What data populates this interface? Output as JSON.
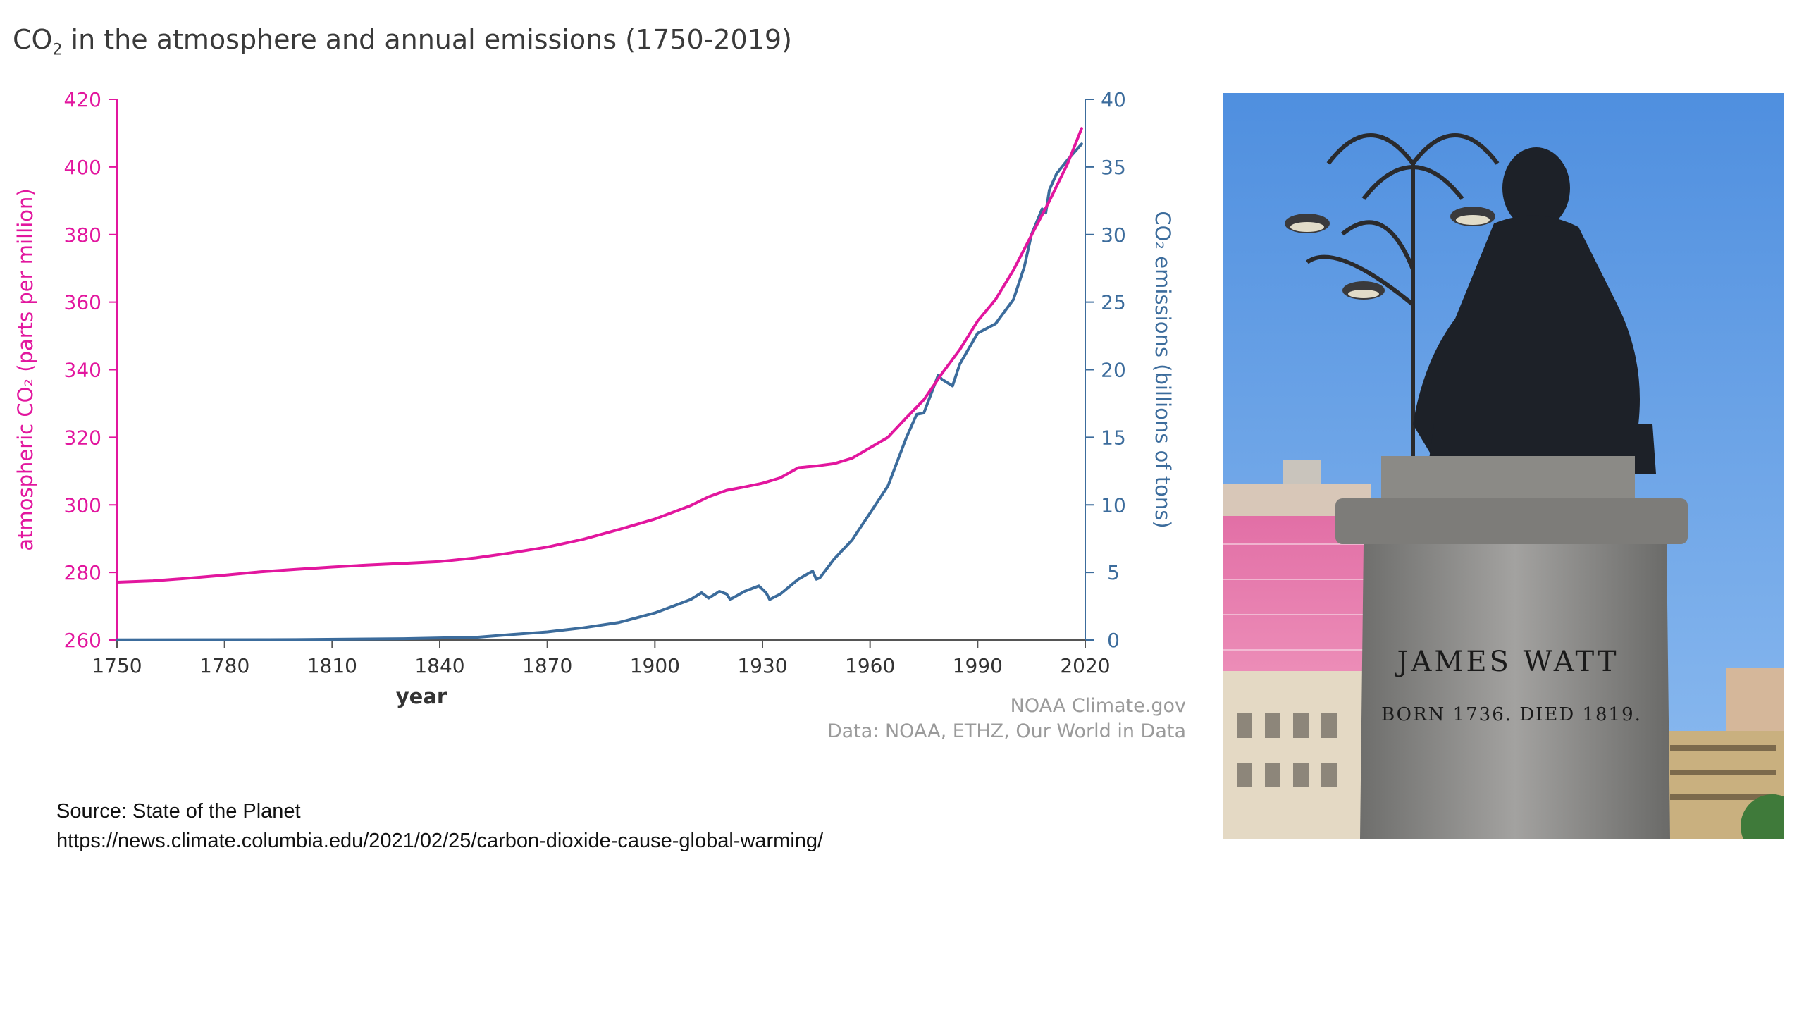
{
  "chart_data": {
    "type": "line",
    "title": "CO₂ in the atmosphere and annual emissions (1750-2019)",
    "title_parts": {
      "pre": "CO",
      "sub": "2",
      "post": " in the atmosphere and annual emissions (1750-2019)"
    },
    "xlabel": "year",
    "ylabel_left": "atmospheric CO₂ (parts per million)",
    "ylabel_right": "CO₂ emissions (billions of tons)",
    "xlim": [
      1750,
      2020
    ],
    "ylim_left": [
      260,
      420
    ],
    "ylim_right": [
      0,
      40
    ],
    "x_ticks": [
      1750,
      1780,
      1810,
      1840,
      1870,
      1900,
      1930,
      1960,
      1990,
      2020
    ],
    "y_ticks_left": [
      260,
      280,
      300,
      320,
      340,
      360,
      380,
      400,
      420
    ],
    "y_ticks_right": [
      0,
      5,
      10,
      15,
      20,
      25,
      30,
      35,
      40
    ],
    "grid": false,
    "series": [
      {
        "axis": "left",
        "color": "#e2169e",
        "x": [
          1750,
          1760,
          1770,
          1780,
          1790,
          1800,
          1810,
          1820,
          1830,
          1840,
          1850,
          1860,
          1870,
          1880,
          1890,
          1900,
          1910,
          1915,
          1920,
          1925,
          1930,
          1935,
          1940,
          1945,
          1950,
          1955,
          1960,
          1965,
          1970,
          1975,
          1980,
          1985,
          1990,
          1995,
          2000,
          2005,
          2010,
          2015,
          2019
        ],
        "y": [
          277.1,
          277.5,
          278.3,
          279.2,
          280.2,
          280.9,
          281.6,
          282.2,
          282.7,
          283.2,
          284.3,
          285.8,
          287.5,
          289.8,
          292.7,
          295.8,
          299.8,
          302.4,
          304.3,
          305.3,
          306.4,
          308.0,
          311.0,
          311.5,
          312.2,
          313.8,
          316.9,
          320.0,
          325.7,
          331.1,
          338.8,
          345.9,
          354.4,
          360.8,
          369.5,
          379.8,
          389.9,
          400.8,
          411.4
        ]
      },
      {
        "axis": "right",
        "color": "#3c6c9c",
        "x": [
          1750,
          1800,
          1830,
          1850,
          1860,
          1870,
          1880,
          1890,
          1900,
          1905,
          1910,
          1913,
          1915,
          1918,
          1920,
          1921,
          1925,
          1929,
          1931,
          1932,
          1935,
          1940,
          1944,
          1945,
          1946,
          1950,
          1955,
          1960,
          1965,
          1970,
          1973,
          1975,
          1979,
          1980,
          1983,
          1985,
          1990,
          1995,
          2000,
          2003,
          2005,
          2008,
          2009,
          2010,
          2012,
          2015,
          2019
        ],
        "y": [
          0.01,
          0.03,
          0.1,
          0.2,
          0.4,
          0.6,
          0.9,
          1.3,
          2.0,
          2.5,
          3.0,
          3.5,
          3.1,
          3.6,
          3.4,
          3.0,
          3.6,
          4.0,
          3.5,
          3.0,
          3.4,
          4.5,
          5.1,
          4.5,
          4.6,
          6.0,
          7.4,
          9.4,
          11.4,
          14.9,
          16.7,
          16.8,
          19.6,
          19.3,
          18.8,
          20.4,
          22.7,
          23.4,
          25.2,
          27.6,
          30.0,
          31.9,
          31.6,
          33.3,
          34.5,
          35.5,
          36.7
        ]
      }
    ],
    "credits": [
      "NOAA Climate.gov",
      "Data: NOAA, ETHZ, Our World in Data"
    ]
  },
  "source": {
    "line1": "Source: State of the Planet",
    "line2": "https://news.climate.columbia.edu/2021/02/25/carbon-dioxide-cause-global-warming/"
  },
  "photo": {
    "plaque_name": "JAMES WATT",
    "plaque_dates": "BORN 1736.  DIED 1819."
  }
}
